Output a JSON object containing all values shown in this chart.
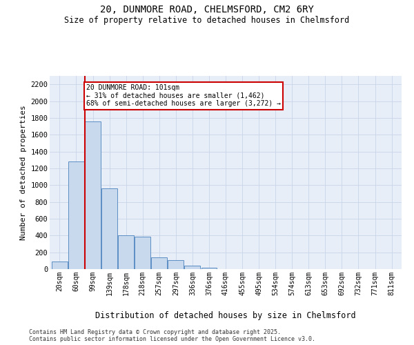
{
  "title_line1": "20, DUNMORE ROAD, CHELMSFORD, CM2 6RY",
  "title_line2": "Size of property relative to detached houses in Chelmsford",
  "xlabel": "Distribution of detached houses by size in Chelmsford",
  "ylabel": "Number of detached properties",
  "categories": [
    "20sqm",
    "60sqm",
    "99sqm",
    "139sqm",
    "178sqm",
    "218sqm",
    "257sqm",
    "297sqm",
    "336sqm",
    "376sqm",
    "416sqm",
    "455sqm",
    "495sqm",
    "534sqm",
    "574sqm",
    "613sqm",
    "653sqm",
    "692sqm",
    "732sqm",
    "771sqm",
    "811sqm"
  ],
  "values": [
    90,
    1280,
    1760,
    960,
    400,
    390,
    140,
    110,
    45,
    20,
    0,
    0,
    0,
    0,
    0,
    0,
    0,
    0,
    0,
    0,
    0
  ],
  "bar_color": "#c8d9ed",
  "bar_edge_color": "#5b8ec4",
  "grid_color": "#c8d4e8",
  "background_color": "#e8eef8",
  "property_line_color": "#cc0000",
  "property_bin_index": 2,
  "annotation_text": "20 DUNMORE ROAD: 101sqm\n← 31% of detached houses are smaller (1,462)\n68% of semi-detached houses are larger (3,272) →",
  "annotation_box_color": "#cc0000",
  "ylim": [
    0,
    2300
  ],
  "yticks": [
    0,
    200,
    400,
    600,
    800,
    1000,
    1200,
    1400,
    1600,
    1800,
    2000,
    2200
  ],
  "footer_line1": "Contains HM Land Registry data © Crown copyright and database right 2025.",
  "footer_line2": "Contains public sector information licensed under the Open Government Licence v3.0."
}
